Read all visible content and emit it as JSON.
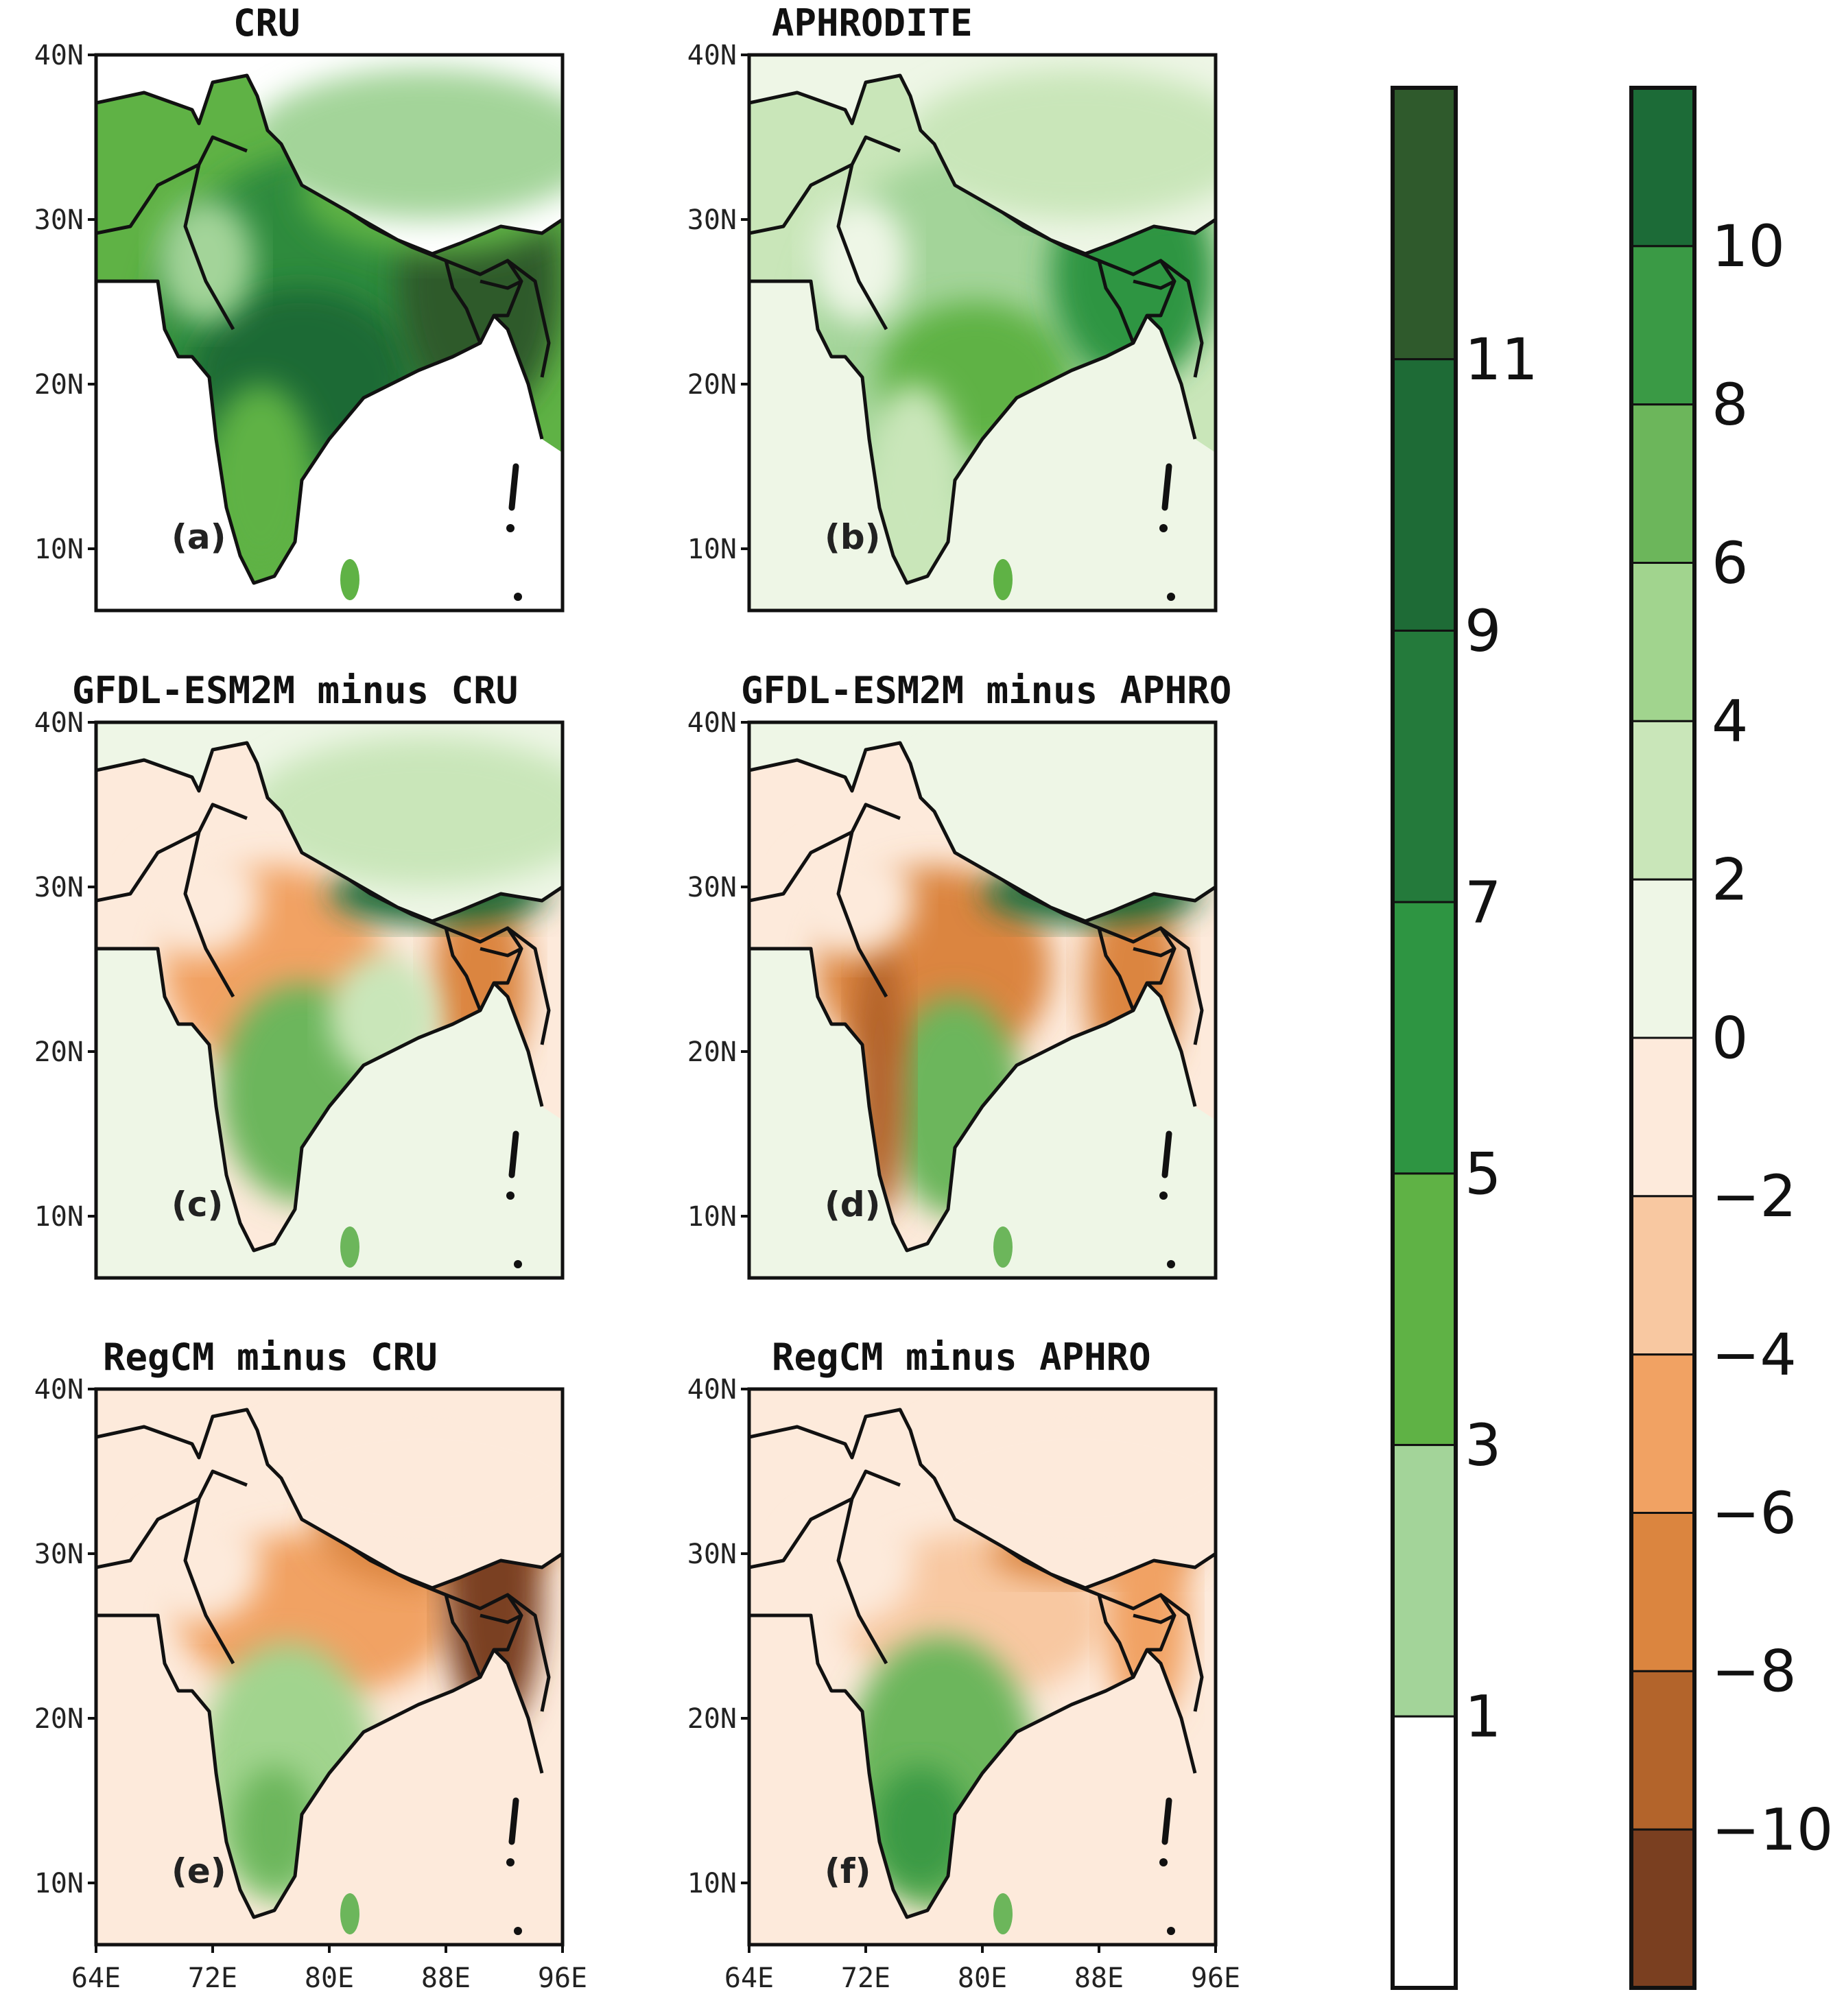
{
  "figure": {
    "panels": [
      {
        "id": "a",
        "title": "CRU",
        "label": "(a)",
        "kind": "absolute"
      },
      {
        "id": "b",
        "title": "APHRODITE",
        "label": "(b)",
        "kind": "absolute"
      },
      {
        "id": "c",
        "title": "GFDL-ESM2M  minus  CRU",
        "label": "(c)",
        "kind": "difference"
      },
      {
        "id": "d",
        "title": "GFDL-ESM2M  minus  APHRO",
        "label": "(d)",
        "kind": "difference"
      },
      {
        "id": "e",
        "title": "RegCM  minus  CRU",
        "label": "(e)",
        "kind": "difference"
      },
      {
        "id": "f",
        "title": "RegCM  minus  APHRO",
        "label": "(f)",
        "kind": "difference"
      }
    ],
    "lat_ticks": [
      "40N",
      "30N",
      "20N",
      "10N"
    ],
    "lon_ticks": [
      "64E",
      "72E",
      "80E",
      "88E",
      "96E"
    ]
  },
  "colorbars": {
    "absolute": {
      "labels": [
        "11",
        "9",
        "7",
        "5",
        "3",
        "1"
      ],
      "colors": [
        "#2f5a2c",
        "#1e6b36",
        "#247a3b",
        "#2e9542",
        "#5fb245",
        "#a3d499",
        "#ffffff"
      ]
    },
    "difference": {
      "labels": [
        "10",
        "8",
        "6",
        "4",
        "2",
        "0",
        "−2",
        "−4",
        "−6",
        "−8",
        "−10"
      ],
      "colors": [
        "#1c6b37",
        "#3a9a45",
        "#6cb65b",
        "#a1d48e",
        "#c9e6b9",
        "#eef6e6",
        "#fdeadb",
        "#f8c8a1",
        "#f1a263",
        "#db853f",
        "#b3642b",
        "#7a3f20"
      ]
    }
  }
}
